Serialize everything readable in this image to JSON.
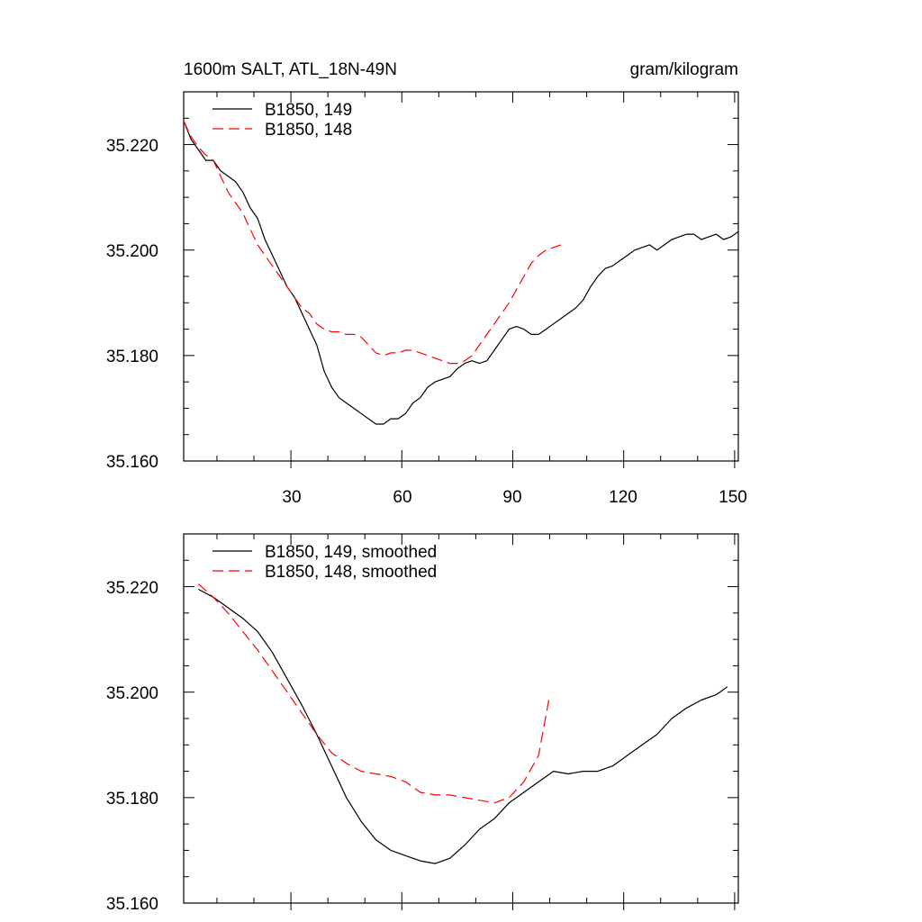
{
  "chart_data": [
    {
      "type": "line",
      "title": "1600m SALT, ATL_18N-49N",
      "units": "gram/kilogram",
      "xlim": [
        1,
        151
      ],
      "ylim": [
        35.16,
        35.23
      ],
      "x_ticks": [
        30,
        60,
        90,
        120,
        150
      ],
      "y_ticks": [
        "35.160",
        "35.180",
        "35.200",
        "35.220"
      ],
      "series": [
        {
          "name": "B1850, 149",
          "color": "#000000",
          "dash": "solid",
          "x": [
            1,
            3,
            5,
            7,
            9,
            11,
            13,
            15,
            17,
            19,
            21,
            23,
            25,
            27,
            29,
            31,
            33,
            35,
            37,
            39,
            41,
            43,
            45,
            47,
            49,
            51,
            53,
            55,
            57,
            59,
            61,
            63,
            65,
            67,
            69,
            71,
            73,
            75,
            77,
            79,
            81,
            83,
            85,
            87,
            89,
            91,
            93,
            95,
            97,
            99,
            101,
            103,
            105,
            107,
            109,
            111,
            113,
            115,
            117,
            119,
            121,
            123,
            125,
            127,
            129,
            131,
            133,
            135,
            137,
            139,
            141,
            143,
            145,
            147,
            149,
            151
          ],
          "values": [
            35.2245,
            35.221,
            35.219,
            35.217,
            35.217,
            35.215,
            35.214,
            35.213,
            35.211,
            35.208,
            35.206,
            35.202,
            35.199,
            35.196,
            35.193,
            35.191,
            35.188,
            35.185,
            35.182,
            35.177,
            35.174,
            35.172,
            35.171,
            35.17,
            35.169,
            35.168,
            35.167,
            35.167,
            35.168,
            35.168,
            35.169,
            35.171,
            35.172,
            35.174,
            35.175,
            35.1755,
            35.176,
            35.1775,
            35.1785,
            35.179,
            35.1785,
            35.179,
            35.181,
            35.183,
            35.185,
            35.1855,
            35.185,
            35.184,
            35.184,
            35.185,
            35.186,
            35.187,
            35.188,
            35.189,
            35.1905,
            35.193,
            35.195,
            35.1965,
            35.197,
            35.198,
            35.199,
            35.2,
            35.2005,
            35.201,
            35.2,
            35.201,
            35.202,
            35.2025,
            35.203,
            35.203,
            35.202,
            35.2025,
            35.203,
            35.202,
            35.2025,
            35.2035
          ]
        },
        {
          "name": "B1850, 148",
          "color": "#ff0000",
          "dash": "dashed",
          "x": [
            1,
            3,
            5,
            7,
            9,
            11,
            13,
            15,
            17,
            19,
            21,
            23,
            25,
            27,
            29,
            31,
            33,
            35,
            37,
            39,
            41,
            43,
            45,
            47,
            49,
            51,
            53,
            55,
            57,
            59,
            61,
            63,
            65,
            67,
            69,
            71,
            73,
            75,
            77,
            79,
            81,
            83,
            85,
            87,
            89,
            91,
            93,
            95,
            97,
            99,
            101,
            103
          ],
          "values": [
            35.2245,
            35.2215,
            35.2195,
            35.218,
            35.217,
            35.214,
            35.211,
            35.209,
            35.207,
            35.204,
            35.201,
            35.199,
            35.197,
            35.195,
            35.193,
            35.191,
            35.189,
            35.188,
            35.186,
            35.185,
            35.1845,
            35.1845,
            35.184,
            35.184,
            35.1835,
            35.182,
            35.1805,
            35.18,
            35.1805,
            35.1805,
            35.181,
            35.181,
            35.1805,
            35.18,
            35.1795,
            35.179,
            35.1785,
            35.1785,
            35.179,
            35.18,
            35.182,
            35.184,
            35.186,
            35.188,
            35.19,
            35.1925,
            35.195,
            35.1975,
            35.199,
            35.2,
            35.2005,
            35.201
          ]
        }
      ]
    },
    {
      "type": "line",
      "xlim": [
        1,
        151
      ],
      "ylim": [
        35.16,
        35.23
      ],
      "y_ticks": [
        "35.160",
        "35.180",
        "35.200",
        "35.220"
      ],
      "series": [
        {
          "name": "B1850, 149, smoothed",
          "color": "#000000",
          "dash": "solid",
          "x": [
            5,
            9,
            13,
            17,
            21,
            25,
            29,
            33,
            37,
            41,
            45,
            49,
            53,
            57,
            61,
            65,
            69,
            73,
            77,
            81,
            85,
            89,
            93,
            97,
            101,
            105,
            109,
            113,
            117,
            121,
            125,
            129,
            133,
            137,
            141,
            145,
            148
          ],
          "values": [
            35.2195,
            35.218,
            35.216,
            35.214,
            35.2115,
            35.2075,
            35.2025,
            35.1975,
            35.192,
            35.186,
            35.18,
            35.1755,
            35.172,
            35.17,
            35.169,
            35.168,
            35.1675,
            35.1685,
            35.171,
            35.174,
            35.176,
            35.179,
            35.181,
            35.183,
            35.185,
            35.1845,
            35.185,
            35.185,
            35.186,
            35.188,
            35.19,
            35.192,
            35.195,
            35.197,
            35.1985,
            35.1995,
            35.201
          ]
        },
        {
          "name": "B1850, 148, smoothed",
          "color": "#ff0000",
          "dash": "dashed",
          "x": [
            5,
            9,
            13,
            17,
            21,
            25,
            29,
            33,
            37,
            41,
            45,
            49,
            53,
            57,
            61,
            65,
            69,
            73,
            77,
            81,
            85,
            89,
            93,
            97,
            100
          ],
          "values": [
            35.2205,
            35.218,
            35.215,
            35.2115,
            35.208,
            35.204,
            35.2,
            35.196,
            35.192,
            35.1885,
            35.1865,
            35.185,
            35.1845,
            35.184,
            35.183,
            35.181,
            35.1805,
            35.1805,
            35.18,
            35.1795,
            35.179,
            35.18,
            35.183,
            35.188,
            35.1995
          ]
        }
      ]
    }
  ]
}
